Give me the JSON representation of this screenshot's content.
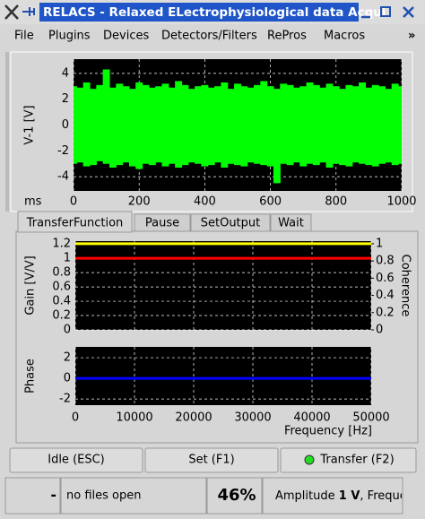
{
  "window": {
    "title": "RELACS - Relaxed ELectrophysiological data Acqui"
  },
  "menu": {
    "items": [
      "File",
      "Plugins",
      "Devices",
      "Detectors/Filters",
      "RePros",
      "Macros"
    ],
    "more": "»"
  },
  "tabs": [
    "TransferFunction",
    "Pause",
    "SetOutput",
    "Wait"
  ],
  "buttons": [
    "Idle (ESC)",
    "Set (F1)",
    "Transfer (F2)"
  ],
  "status": {
    "state": "-",
    "files": "no files open",
    "load": "46%",
    "message_prefix": "Amplitude ",
    "message_value": "1 V",
    "message_suffix": ", Freque"
  },
  "chart_data": [
    {
      "type": "band",
      "ylabel": "V-1 [V]",
      "xlabel": "ms",
      "color": "#00ff00",
      "grid": true,
      "x": [
        0,
        20,
        40,
        60,
        80,
        100,
        120,
        140,
        160,
        180,
        200,
        220,
        240,
        260,
        280,
        300,
        320,
        340,
        360,
        380,
        400,
        420,
        440,
        460,
        480,
        500,
        520,
        540,
        560,
        580,
        600,
        620,
        640,
        660,
        680,
        700,
        720,
        740,
        760,
        780,
        800,
        820,
        840,
        860,
        880,
        900,
        920,
        940,
        960,
        980,
        1000
      ],
      "upper": [
        3.0,
        2.9,
        3.3,
        2.8,
        3.1,
        4.3,
        2.9,
        3.2,
        3.0,
        2.8,
        3.3,
        3.1,
        2.9,
        3.0,
        3.2,
        2.9,
        3.4,
        3.1,
        2.8,
        3.0,
        3.1,
        2.9,
        3.0,
        3.3,
        2.8,
        3.2,
        3.0,
        2.9,
        3.1,
        3.4,
        3.0,
        2.8,
        3.2,
        3.1,
        2.9,
        3.0,
        3.3,
        3.1,
        2.9,
        3.2,
        3.0,
        2.8,
        3.1,
        3.0,
        3.3,
        2.9,
        3.1,
        3.0,
        2.8,
        3.2,
        3.0
      ],
      "lower": [
        -3.0,
        -2.9,
        -3.2,
        -3.1,
        -2.8,
        -3.0,
        -3.3,
        -3.1,
        -2.9,
        -3.2,
        -3.4,
        -3.0,
        -3.1,
        -2.9,
        -3.2,
        -3.0,
        -3.3,
        -3.1,
        -2.9,
        -3.0,
        -3.2,
        -3.1,
        -2.9,
        -3.3,
        -3.0,
        -3.1,
        -3.2,
        -2.9,
        -3.0,
        -3.1,
        -3.2,
        -4.5,
        -3.0,
        -3.1,
        -2.9,
        -3.2,
        -3.0,
        -3.1,
        -2.9,
        -3.3,
        -3.0,
        -3.1,
        -3.2,
        -2.9,
        -3.0,
        -3.1,
        -3.2,
        -3.0,
        -2.9,
        -3.1,
        -3.0
      ],
      "xlim": [
        0,
        1000
      ],
      "xticks": [
        0,
        200,
        400,
        600,
        800,
        1000
      ],
      "ylim": [
        -5.1,
        5.1
      ],
      "yticks": [
        -4,
        -2,
        0,
        2,
        4
      ]
    },
    {
      "type": "line",
      "ylabel": "Gain [V/V]",
      "y2label": "Coherence",
      "grid": true,
      "xtick_labels": false,
      "x": [
        0,
        50000
      ],
      "series": [
        {
          "color": "#ff0000",
          "values": [
            1,
            1
          ]
        },
        {
          "color": "#ffff00",
          "values": [
            1,
            1
          ],
          "axis": "y2"
        }
      ],
      "xlim": [
        0,
        50000
      ],
      "xticks": [
        0,
        10000,
        20000,
        30000,
        40000,
        50000
      ],
      "ylim": [
        0,
        1.24
      ],
      "yticks": [
        0,
        0.2,
        0.4,
        0.6,
        0.8,
        1,
        1.2
      ],
      "y2lim": [
        0,
        1.03
      ],
      "y2ticks": [
        0,
        0.2,
        0.4,
        0.6,
        0.8,
        1
      ]
    },
    {
      "type": "line",
      "ylabel": "Phase",
      "xlabel": "Frequency [Hz]",
      "grid": true,
      "xtick_labels": true,
      "x": [
        0,
        50000
      ],
      "series": [
        {
          "color": "#0000ff",
          "values": [
            0,
            0
          ]
        }
      ],
      "xlim": [
        0,
        50000
      ],
      "xticks": [
        0,
        10000,
        20000,
        30000,
        40000,
        50000
      ],
      "ylim": [
        -2.6,
        3.05
      ],
      "yticks": [
        -2,
        0,
        2
      ]
    }
  ]
}
